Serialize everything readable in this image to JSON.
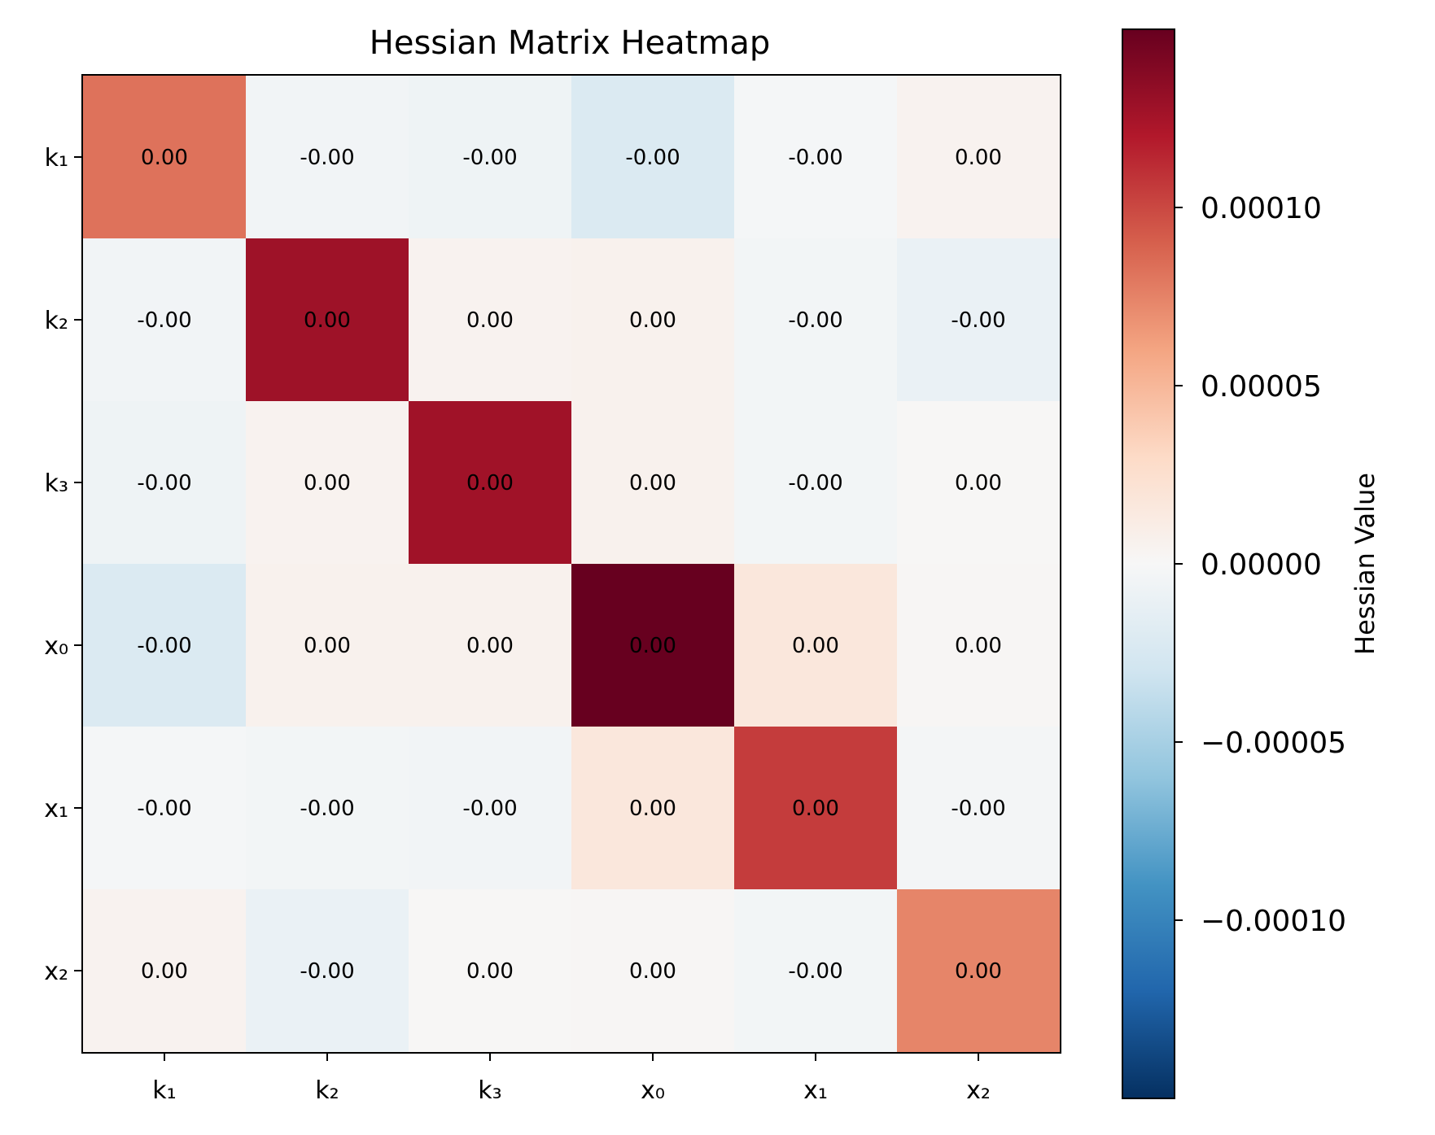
{
  "chart_data": {
    "type": "heatmap",
    "title": "Hessian Matrix Heatmap",
    "x_categories": [
      "k₁",
      "k₂",
      "k₃",
      "x₀",
      "x₁",
      "x₂"
    ],
    "y_categories": [
      "k₁",
      "k₂",
      "k₃",
      "x₀",
      "x₁",
      "x₂"
    ],
    "values": [
      [
        8.2e-05,
        -5e-06,
        -7e-06,
        -2.2e-05,
        -2e-06,
        5e-06
      ],
      [
        -5e-06,
        0.000128,
        5e-06,
        6e-06,
        -4e-06,
        -1e-05
      ],
      [
        -7e-06,
        5e-06,
        0.000127,
        6e-06,
        -4e-06,
        1e-06
      ],
      [
        -2.2e-05,
        6e-06,
        6e-06,
        0.00015,
        1.7e-05,
        2e-06
      ],
      [
        -2e-06,
        -4e-06,
        -5e-06,
        1.7e-05,
        0.000105,
        -3e-06
      ],
      [
        5e-06,
        -1e-05,
        1e-06,
        2e-06,
        -4e-06,
        7.4e-05
      ]
    ],
    "cell_labels": [
      [
        "0.00",
        "-0.00",
        "-0.00",
        "-0.00",
        "-0.00",
        "0.00"
      ],
      [
        "-0.00",
        "0.00",
        "0.00",
        "0.00",
        "-0.00",
        "-0.00"
      ],
      [
        "-0.00",
        "0.00",
        "0.00",
        "0.00",
        "-0.00",
        "0.00"
      ],
      [
        "-0.00",
        "0.00",
        "0.00",
        "0.00",
        "0.00",
        "0.00"
      ],
      [
        "-0.00",
        "-0.00",
        "-0.00",
        "0.00",
        "0.00",
        "-0.00"
      ],
      [
        "0.00",
        "-0.00",
        "0.00",
        "0.00",
        "-0.00",
        "0.00"
      ]
    ],
    "colormap": "RdBu_r",
    "vmin": -0.00015,
    "vmax": 0.00015,
    "colorbar": {
      "label": "Hessian Value",
      "ticks": [
        0.0001,
        5e-05,
        0,
        -5e-05,
        -0.0001
      ],
      "tick_labels": [
        "0.00010",
        "0.00005",
        "0.00000",
        "−0.00005",
        "−0.00010"
      ]
    },
    "colors": {
      "dark_red": "#67001f",
      "red": "#b2182b",
      "light_red": "#d6604d",
      "salmon": "#f4a582",
      "peach": "#fddbc7",
      "neutral": "#f7f7f7",
      "light_blue": "#d1e5f0",
      "sky": "#92c5de",
      "blue": "#4393c3",
      "dark_blue": "#2166ac",
      "navy": "#053061"
    }
  }
}
